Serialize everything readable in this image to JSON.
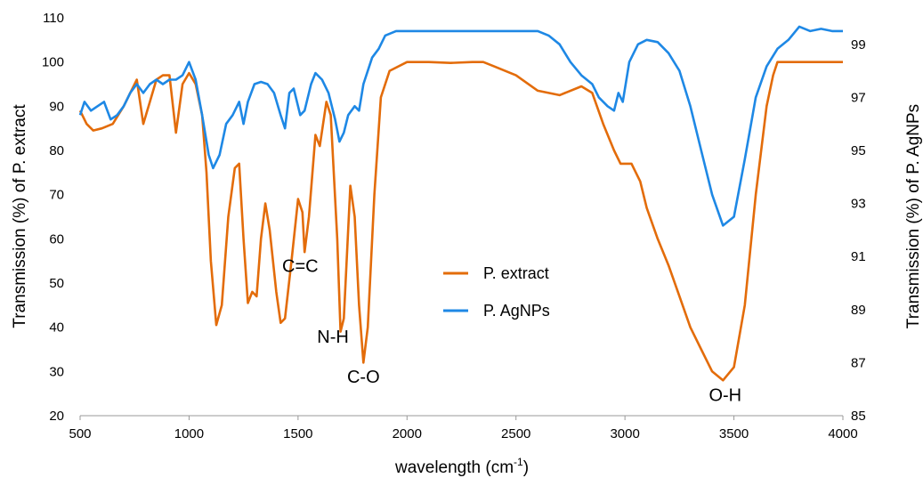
{
  "chart_data": {
    "type": "line",
    "xlabel_main": "wavelength (cm",
    "xlabel_sup": "-1",
    "xlabel_end": ")",
    "ylabel_left": "Transmission (%) of P. extract",
    "ylabel_right": "Transmission (%) of P. AgNPs",
    "xlim": [
      500,
      4000
    ],
    "ylim_left": [
      20,
      110
    ],
    "ylim_right": [
      85,
      100
    ],
    "x_ticks": [
      "500",
      "1000",
      "1500",
      "2000",
      "2500",
      "3000",
      "3500",
      "4000"
    ],
    "y_ticks_left": [
      "20",
      "30",
      "40",
      "50",
      "60",
      "70",
      "80",
      "90",
      "100",
      "110"
    ],
    "y_ticks_right": [
      "85",
      "87",
      "89",
      "91",
      "93",
      "95",
      "97",
      "99"
    ],
    "legend_position": "center",
    "series": [
      {
        "name": "P. extract",
        "axis": "left",
        "color": "#E36C0A",
        "points": [
          [
            500,
            89
          ],
          [
            530,
            86
          ],
          [
            560,
            84.5
          ],
          [
            600,
            85
          ],
          [
            650,
            86
          ],
          [
            700,
            90
          ],
          [
            730,
            93
          ],
          [
            760,
            96
          ],
          [
            790,
            86
          ],
          [
            820,
            91
          ],
          [
            850,
            96
          ],
          [
            880,
            97
          ],
          [
            910,
            97
          ],
          [
            940,
            84
          ],
          [
            970,
            95
          ],
          [
            1000,
            97.5
          ],
          [
            1030,
            95
          ],
          [
            1060,
            88
          ],
          [
            1080,
            75
          ],
          [
            1100,
            55
          ],
          [
            1125,
            40.5
          ],
          [
            1150,
            45
          ],
          [
            1180,
            65
          ],
          [
            1210,
            76
          ],
          [
            1230,
            77
          ],
          [
            1250,
            60
          ],
          [
            1270,
            45.5
          ],
          [
            1290,
            48
          ],
          [
            1310,
            47
          ],
          [
            1330,
            60
          ],
          [
            1350,
            68
          ],
          [
            1370,
            62
          ],
          [
            1400,
            48
          ],
          [
            1420,
            41
          ],
          [
            1440,
            42
          ],
          [
            1470,
            55
          ],
          [
            1500,
            69
          ],
          [
            1520,
            66
          ],
          [
            1530,
            57
          ],
          [
            1550,
            65
          ],
          [
            1580,
            83.5
          ],
          [
            1600,
            81
          ],
          [
            1630,
            91
          ],
          [
            1650,
            88
          ],
          [
            1680,
            60
          ],
          [
            1695,
            39
          ],
          [
            1710,
            42
          ],
          [
            1740,
            72
          ],
          [
            1760,
            65
          ],
          [
            1780,
            45
          ],
          [
            1800,
            32
          ],
          [
            1820,
            40
          ],
          [
            1850,
            70
          ],
          [
            1880,
            92
          ],
          [
            1920,
            98
          ],
          [
            2000,
            100
          ],
          [
            2100,
            100
          ],
          [
            2200,
            99.8
          ],
          [
            2300,
            100
          ],
          [
            2350,
            100
          ],
          [
            2400,
            99
          ],
          [
            2500,
            97
          ],
          [
            2600,
            93.5
          ],
          [
            2700,
            92.5
          ],
          [
            2800,
            94.5
          ],
          [
            2850,
            93
          ],
          [
            2900,
            86
          ],
          [
            2950,
            80
          ],
          [
            2980,
            77
          ],
          [
            3000,
            77
          ],
          [
            3030,
            77
          ],
          [
            3070,
            73
          ],
          [
            3100,
            67
          ],
          [
            3150,
            60
          ],
          [
            3200,
            54
          ],
          [
            3250,
            47
          ],
          [
            3300,
            40
          ],
          [
            3350,
            35
          ],
          [
            3400,
            30
          ],
          [
            3450,
            28
          ],
          [
            3500,
            31
          ],
          [
            3550,
            45
          ],
          [
            3600,
            70
          ],
          [
            3650,
            90
          ],
          [
            3680,
            97
          ],
          [
            3700,
            100
          ],
          [
            3750,
            100
          ],
          [
            3800,
            100
          ],
          [
            3850,
            100
          ],
          [
            3900,
            100
          ],
          [
            3950,
            100
          ],
          [
            4000,
            100
          ]
        ]
      },
      {
        "name": "P. AgNPs",
        "axis": "left",
        "color": "#1E88E5",
        "points": [
          [
            500,
            88
          ],
          [
            520,
            91
          ],
          [
            550,
            89
          ],
          [
            580,
            90
          ],
          [
            610,
            91
          ],
          [
            640,
            87
          ],
          [
            670,
            88
          ],
          [
            700,
            90
          ],
          [
            730,
            93
          ],
          [
            760,
            95
          ],
          [
            790,
            93
          ],
          [
            820,
            95
          ],
          [
            850,
            96
          ],
          [
            880,
            95
          ],
          [
            910,
            96
          ],
          [
            940,
            96
          ],
          [
            970,
            97
          ],
          [
            1000,
            100
          ],
          [
            1030,
            96
          ],
          [
            1060,
            88
          ],
          [
            1090,
            79
          ],
          [
            1110,
            76
          ],
          [
            1140,
            79
          ],
          [
            1170,
            86
          ],
          [
            1200,
            88
          ],
          [
            1230,
            91
          ],
          [
            1250,
            86
          ],
          [
            1270,
            91
          ],
          [
            1300,
            95
          ],
          [
            1330,
            95.5
          ],
          [
            1360,
            95
          ],
          [
            1390,
            93
          ],
          [
            1420,
            88
          ],
          [
            1440,
            85
          ],
          [
            1460,
            93
          ],
          [
            1480,
            94
          ],
          [
            1510,
            88
          ],
          [
            1530,
            89
          ],
          [
            1560,
            95
          ],
          [
            1580,
            97.5
          ],
          [
            1610,
            96
          ],
          [
            1640,
            93
          ],
          [
            1670,
            87
          ],
          [
            1690,
            82
          ],
          [
            1710,
            84
          ],
          [
            1730,
            88
          ],
          [
            1760,
            90
          ],
          [
            1780,
            89
          ],
          [
            1800,
            95
          ],
          [
            1840,
            101
          ],
          [
            1870,
            103
          ],
          [
            1900,
            106
          ],
          [
            1950,
            107
          ],
          [
            2000,
            107
          ],
          [
            2100,
            107
          ],
          [
            2200,
            107
          ],
          [
            2300,
            107
          ],
          [
            2400,
            107
          ],
          [
            2500,
            107
          ],
          [
            2600,
            107
          ],
          [
            2650,
            106
          ],
          [
            2700,
            104
          ],
          [
            2750,
            100
          ],
          [
            2800,
            97
          ],
          [
            2850,
            95
          ],
          [
            2880,
            92
          ],
          [
            2920,
            90
          ],
          [
            2950,
            89
          ],
          [
            2970,
            93
          ],
          [
            2990,
            91
          ],
          [
            3020,
            100
          ],
          [
            3060,
            104
          ],
          [
            3100,
            105
          ],
          [
            3150,
            104.5
          ],
          [
            3200,
            102
          ],
          [
            3250,
            98
          ],
          [
            3300,
            90
          ],
          [
            3350,
            80
          ],
          [
            3400,
            70
          ],
          [
            3450,
            63
          ],
          [
            3500,
            65
          ],
          [
            3550,
            78
          ],
          [
            3600,
            92
          ],
          [
            3650,
            99
          ],
          [
            3700,
            103
          ],
          [
            3750,
            105
          ],
          [
            3800,
            108
          ],
          [
            3850,
            107
          ],
          [
            3900,
            107.5
          ],
          [
            3950,
            107
          ],
          [
            4000,
            107
          ]
        ]
      }
    ],
    "annotations": [
      {
        "text": "C=C",
        "x": 1510,
        "y": 52.5
      },
      {
        "text": "N-H",
        "x": 1660,
        "y": 36.5
      },
      {
        "text": "C-O",
        "x": 1800,
        "y": 27.5
      },
      {
        "text": "O-H",
        "x": 3460,
        "y": 23.3
      }
    ]
  }
}
